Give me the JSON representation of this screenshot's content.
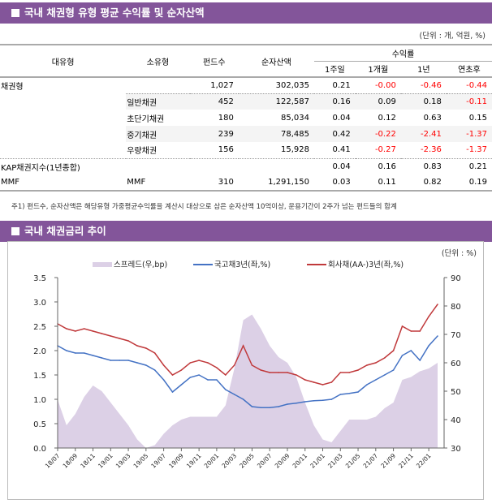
{
  "section1": {
    "title": "국내 채권형 유형 평균 수익률 및 순자산액",
    "unit": "(단위 : 개, 억원, %)"
  },
  "table": {
    "headers": {
      "major": "대유형",
      "minor": "소유형",
      "funds": "펀드수",
      "nav": "순자산액",
      "returns": "수익률",
      "w1": "1주일",
      "m1": "1개월",
      "y1": "1년",
      "ytd": "연초후"
    },
    "rows": [
      {
        "major": "채권형",
        "minor": "",
        "funds": "1,027",
        "nav": "302,035",
        "w1": "0.21",
        "m1": "-0.00",
        "y1": "-0.46",
        "ytd": "-0.44"
      },
      {
        "major": "",
        "minor": "일반채권",
        "funds": "452",
        "nav": "122,587",
        "w1": "0.16",
        "m1": "0.09",
        "y1": "0.18",
        "ytd": "-0.11"
      },
      {
        "major": "",
        "minor": "초단기채권",
        "funds": "180",
        "nav": "85,034",
        "w1": "0.04",
        "m1": "0.12",
        "y1": "0.63",
        "ytd": "0.15"
      },
      {
        "major": "",
        "minor": "중기채권",
        "funds": "239",
        "nav": "78,485",
        "w1": "0.42",
        "m1": "-0.22",
        "y1": "-2.41",
        "ytd": "-1.37"
      },
      {
        "major": "",
        "minor": "우량채권",
        "funds": "156",
        "nav": "15,928",
        "w1": "0.41",
        "m1": "-0.27",
        "y1": "-2.36",
        "ytd": "-1.37"
      },
      {
        "major": "KAP채권지수(1년종합)",
        "minor": "",
        "funds": "",
        "nav": "",
        "w1": "0.04",
        "m1": "0.16",
        "y1": "0.83",
        "ytd": "0.21"
      },
      {
        "major": "MMF",
        "minor": "MMF",
        "funds": "310",
        "nav": "1,291,150",
        "w1": "0.03",
        "m1": "0.11",
        "y1": "0.82",
        "ytd": "0.19"
      }
    ],
    "note": "주1) 펀드수, 순자산액은 해당유형 가중평균수익률을 계산시 대상으로 삼은 순자산액 10억이상, 운용기간이 2주가 넘는 펀드들의 합계"
  },
  "section2": {
    "title": "국내 채권금리 추이"
  },
  "colors": {
    "header": "#83559a",
    "negative": "#ff0000",
    "spread": "#dcd0e6",
    "govt": "#4472c4",
    "corp": "#c0393b"
  },
  "chart_data": {
    "type": "line",
    "unit": "(단위 : %)",
    "x": [
      "18/07",
      "18/08",
      "18/09",
      "18/10",
      "18/11",
      "18/12",
      "19/01",
      "19/02",
      "19/03",
      "19/04",
      "19/05",
      "19/06",
      "19/07",
      "19/08",
      "19/09",
      "19/10",
      "19/11",
      "19/12",
      "20/01",
      "20/02",
      "20/03",
      "20/04",
      "20/05",
      "20/06",
      "20/07",
      "20/08",
      "20/09",
      "20/10",
      "20/11",
      "20/12",
      "21/01",
      "21/02",
      "21/03",
      "21/04",
      "21/05",
      "21/06",
      "21/07",
      "21/08",
      "21/09",
      "21/10",
      "21/11",
      "21/12",
      "22/01",
      "22/02"
    ],
    "xticks": [
      "18/07",
      "18/09",
      "18/11",
      "19/01",
      "19/03",
      "19/05",
      "19/07",
      "19/09",
      "19/11",
      "20/01",
      "20/03",
      "20/05",
      "20/07",
      "20/09",
      "20/11",
      "21/01",
      "21/03",
      "21/05",
      "21/07",
      "21/09",
      "21/11",
      "22/01"
    ],
    "yleft": {
      "range": [
        0.0,
        3.5
      ],
      "ticks": [
        "0.0",
        "0.5",
        "1.0",
        "1.5",
        "2.0",
        "2.5",
        "3.0",
        "3.5"
      ]
    },
    "yright": {
      "range": [
        30,
        90
      ],
      "ticks": [
        "30",
        "40",
        "50",
        "60",
        "70",
        "80",
        "90"
      ]
    },
    "legend_position": "top",
    "series": [
      {
        "name": "스프레드(우,bp)",
        "type": "area",
        "axis": "right",
        "values": [
          47,
          38,
          42,
          48,
          52,
          50,
          46,
          42,
          38,
          33,
          30,
          31,
          35,
          38,
          40,
          41,
          41,
          41,
          41,
          45,
          58,
          75,
          77,
          72,
          66,
          62,
          60,
          55,
          46,
          38,
          33,
          32,
          36,
          40,
          40,
          40,
          41,
          44,
          46,
          54,
          55,
          57,
          58,
          60
        ]
      },
      {
        "name": "국고채3년(좌,%)",
        "type": "line",
        "axis": "left",
        "values": [
          2.1,
          2.0,
          1.95,
          1.95,
          1.9,
          1.85,
          1.8,
          1.8,
          1.8,
          1.75,
          1.7,
          1.6,
          1.4,
          1.15,
          1.3,
          1.45,
          1.5,
          1.4,
          1.4,
          1.2,
          1.1,
          1.0,
          0.85,
          0.83,
          0.83,
          0.85,
          0.9,
          0.92,
          0.95,
          0.97,
          0.98,
          1.0,
          1.1,
          1.12,
          1.15,
          1.3,
          1.4,
          1.5,
          1.6,
          1.9,
          2.0,
          1.8,
          2.1,
          2.3
        ]
      },
      {
        "name": "회사채(AA-)3년(좌,%)",
        "type": "line",
        "axis": "left",
        "values": [
          2.55,
          2.45,
          2.4,
          2.45,
          2.4,
          2.35,
          2.3,
          2.25,
          2.2,
          2.1,
          2.05,
          1.95,
          1.7,
          1.5,
          1.6,
          1.75,
          1.8,
          1.75,
          1.65,
          1.5,
          1.7,
          2.1,
          1.7,
          1.6,
          1.55,
          1.55,
          1.55,
          1.5,
          1.4,
          1.35,
          1.3,
          1.35,
          1.55,
          1.55,
          1.6,
          1.7,
          1.75,
          1.85,
          2.0,
          2.5,
          2.4,
          2.4,
          2.7,
          2.95
        ]
      }
    ]
  }
}
